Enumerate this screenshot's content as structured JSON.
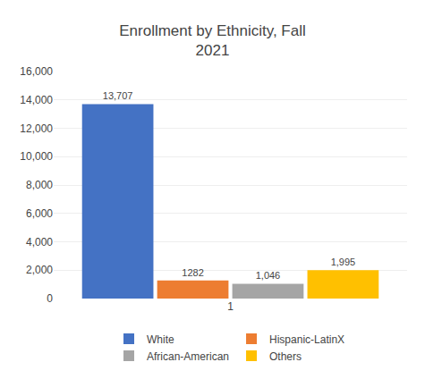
{
  "chart_data": {
    "type": "bar",
    "title": "Enrollment by Ethnicity, Fall\n2021",
    "categories": [
      "1"
    ],
    "series": [
      {
        "name": "White",
        "color": "#4472C4",
        "values": [
          13707
        ],
        "value_labels": [
          "13,707"
        ]
      },
      {
        "name": "Hispanic-LatinX",
        "color": "#ED7D31",
        "values": [
          1282
        ],
        "value_labels": [
          "1282"
        ]
      },
      {
        "name": "African-American",
        "color": "#A5A5A5",
        "values": [
          1046
        ],
        "value_labels": [
          "1,046"
        ]
      },
      {
        "name": "Others",
        "color": "#FFC000",
        "values": [
          1995
        ],
        "value_labels": [
          "1,995"
        ]
      }
    ],
    "ylim": [
      0,
      16000
    ],
    "yticks": [
      0,
      {
        "value": 2000,
        "label": "2,000"
      },
      {
        "value": 4000,
        "label": "4,000"
      },
      {
        "value": 6000,
        "label": "6,000"
      },
      {
        "value": 8000,
        "label": "8,000"
      },
      {
        "value": 10000,
        "label": "10,000"
      },
      {
        "value": 12000,
        "label": "12,000"
      },
      {
        "value": 14000,
        "label": "14,000"
      },
      {
        "value": 16000,
        "label": "16,000"
      }
    ],
    "grid": true,
    "legend": "bottom",
    "data_labels": true
  }
}
